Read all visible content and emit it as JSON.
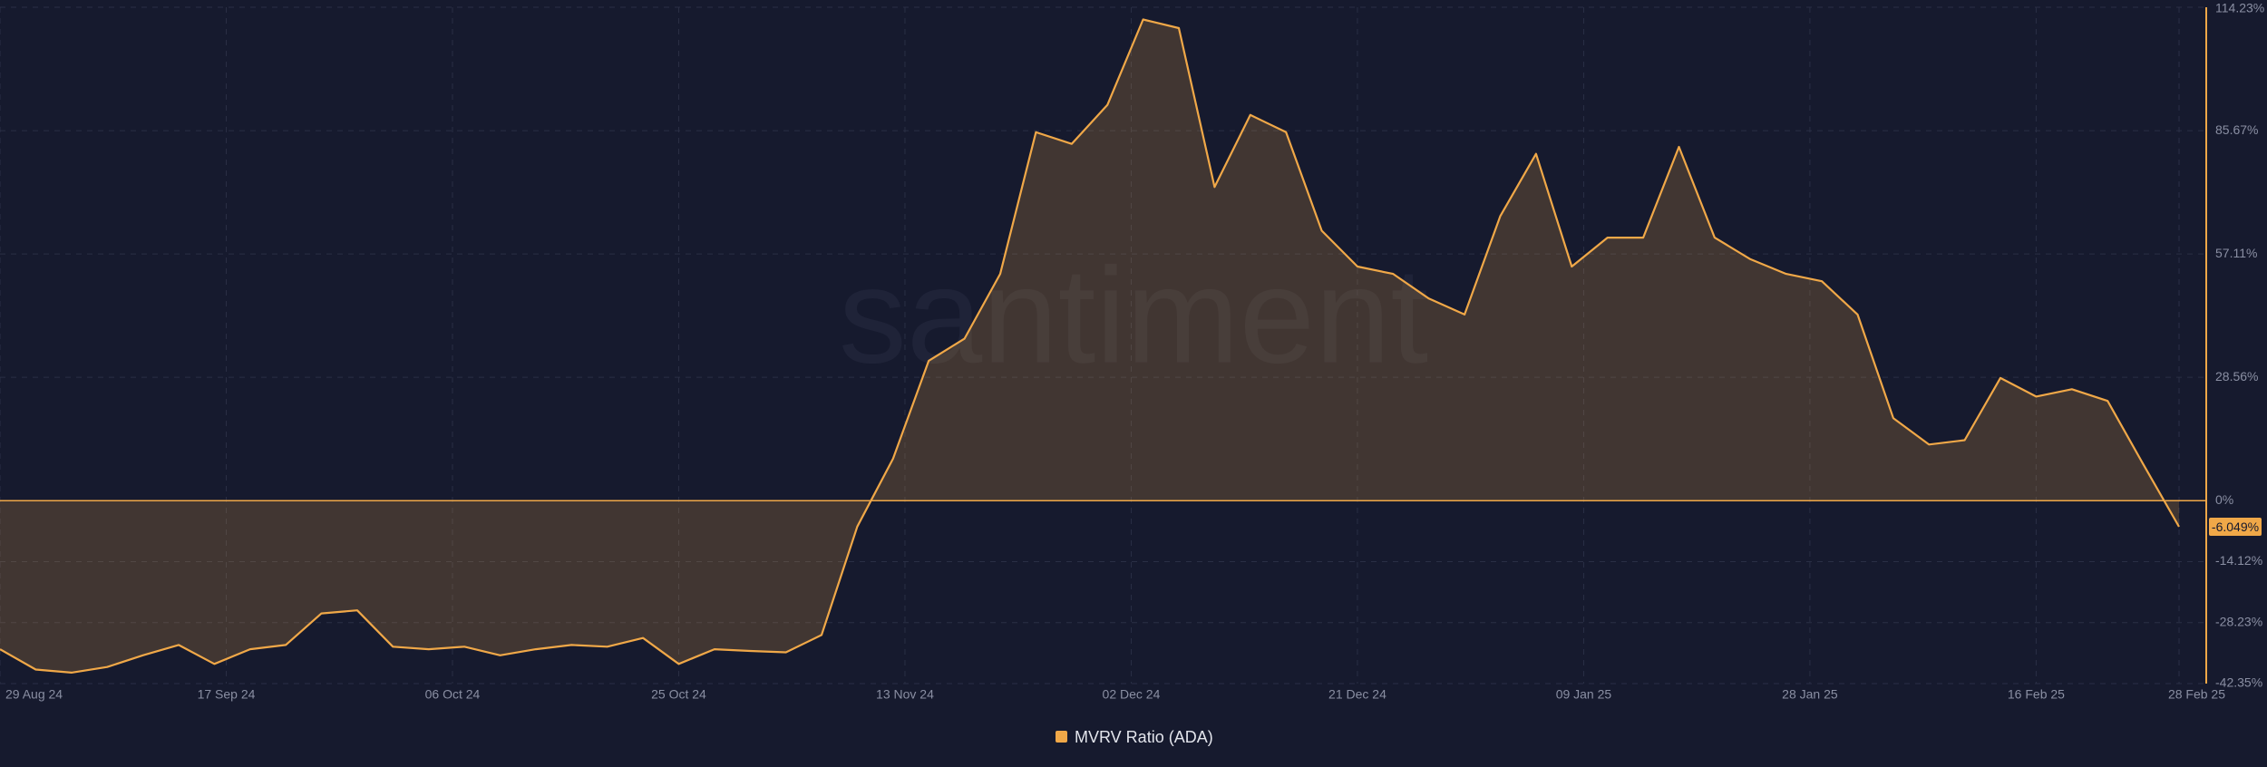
{
  "chart_data": {
    "type": "area",
    "watermark": "santiment",
    "x": [
      "2024-08-29",
      "2024-09-01",
      "2024-09-04",
      "2024-09-07",
      "2024-09-10",
      "2024-09-13",
      "2024-09-16",
      "2024-09-19",
      "2024-09-22",
      "2024-09-25",
      "2024-09-28",
      "2024-10-01",
      "2024-10-04",
      "2024-10-07",
      "2024-10-10",
      "2024-10-13",
      "2024-10-16",
      "2024-10-19",
      "2024-10-22",
      "2024-10-25",
      "2024-10-28",
      "2024-10-31",
      "2024-11-03",
      "2024-11-06",
      "2024-11-09",
      "2024-11-12",
      "2024-11-15",
      "2024-11-18",
      "2024-11-21",
      "2024-11-24",
      "2024-11-27",
      "2024-11-30",
      "2024-12-03",
      "2024-12-06",
      "2024-12-09",
      "2024-12-12",
      "2024-12-15",
      "2024-12-18",
      "2024-12-21",
      "2024-12-24",
      "2024-12-27",
      "2024-12-30",
      "2025-01-02",
      "2025-01-05",
      "2025-01-08",
      "2025-01-11",
      "2025-01-14",
      "2025-01-17",
      "2025-01-20",
      "2025-01-23",
      "2025-01-26",
      "2025-01-29",
      "2025-02-01",
      "2025-02-04",
      "2025-02-07",
      "2025-02-10",
      "2025-02-13",
      "2025-02-16",
      "2025-02-19",
      "2025-02-22",
      "2025-02-25",
      "2025-02-28"
    ],
    "series": [
      {
        "name": "MVRV Ratio (ADA)",
        "color": "#f0a848",
        "values": [
          -34.4,
          -39.1,
          -39.8,
          -38.5,
          -35.8,
          -33.4,
          -37.8,
          -34.4,
          -33.4,
          -26.1,
          -25.4,
          -33.8,
          -34.4,
          -33.8,
          -35.8,
          -34.4,
          -33.4,
          -33.8,
          -31.8,
          -37.8,
          -34.4,
          -34.8,
          -35.1,
          -31.1,
          -6.0,
          9.7,
          32.4,
          37.5,
          52.5,
          85.3,
          82.6,
          91.6,
          111.4,
          109.4,
          72.6,
          89.3,
          85.3,
          62.5,
          54.2,
          52.5,
          46.8,
          43.1,
          65.9,
          80.3,
          54.2,
          60.9,
          60.9,
          81.9,
          60.9,
          55.9,
          52.5,
          50.8,
          43.1,
          19.1,
          13.0,
          14.0,
          28.4,
          24.1,
          25.8,
          23.1,
          8.4,
          -6.049
        ]
      }
    ],
    "xlim": [
      "2024-08-29",
      "2025-02-28"
    ],
    "xticks": [
      {
        "value": "2024-08-29",
        "label": "29 Aug 24"
      },
      {
        "value": "2024-09-17",
        "label": "17 Sep 24"
      },
      {
        "value": "2024-10-06",
        "label": "06 Oct 24"
      },
      {
        "value": "2024-10-25",
        "label": "25 Oct 24"
      },
      {
        "value": "2024-11-13",
        "label": "13 Nov 24"
      },
      {
        "value": "2024-12-02",
        "label": "02 Dec 24"
      },
      {
        "value": "2024-12-21",
        "label": "21 Dec 24"
      },
      {
        "value": "2025-01-09",
        "label": "09 Jan 25"
      },
      {
        "value": "2025-01-28",
        "label": "28 Jan 25"
      },
      {
        "value": "2025-02-16",
        "label": "16 Feb 25"
      },
      {
        "value": "2025-02-28",
        "label": "28 Feb 25"
      }
    ],
    "ylim": [
      -42.35,
      114.23
    ],
    "yticks": [
      {
        "value": 114.23,
        "label": "114.23%"
      },
      {
        "value": 85.67,
        "label": "85.67%"
      },
      {
        "value": 57.11,
        "label": "57.11%"
      },
      {
        "value": 28.56,
        "label": "28.56%"
      },
      {
        "value": 0,
        "label": "0%"
      },
      {
        "value": -14.12,
        "label": "-14.12%"
      },
      {
        "value": -28.23,
        "label": "-28.23%"
      },
      {
        "value": -42.35,
        "label": "-42.35%"
      }
    ],
    "grid": true,
    "zero_line": true,
    "annotations": [
      {
        "value": -6.049,
        "label": "-6.049%"
      }
    ],
    "legend": "bottom"
  }
}
